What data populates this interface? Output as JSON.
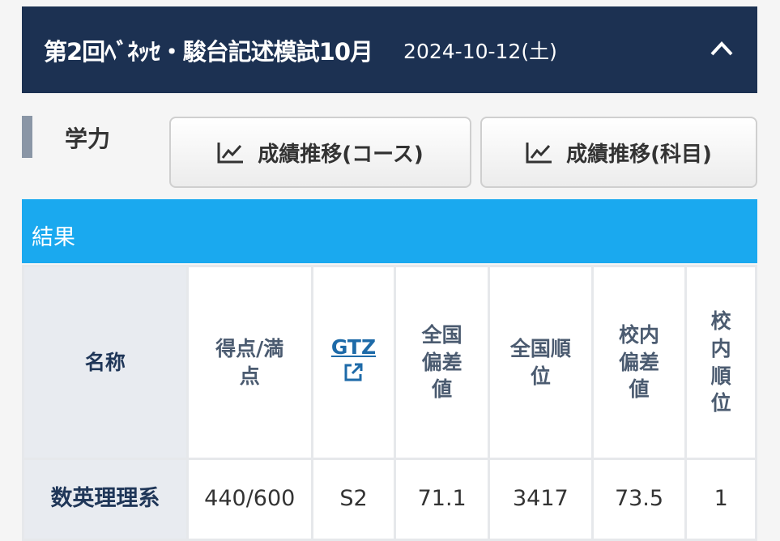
{
  "header": {
    "title": "第2回ﾍﾞﾈｯｾ・駿台記述模試10月",
    "date": "2024-10-12(土)",
    "collapse_icon": "chevron-up-icon"
  },
  "section": {
    "label": "学力"
  },
  "buttons": [
    {
      "label": "成績推移(コース)",
      "icon": "trend-chart-icon"
    },
    {
      "label": "成績推移(科目)",
      "icon": "trend-chart-icon"
    }
  ],
  "results": {
    "title": "結果"
  },
  "colors": {
    "header_bg": "#1c3152",
    "results_bar": "#1aa9ef",
    "link": "#1d6aa8"
  },
  "table": {
    "headers": [
      "名称",
      "得点/満点",
      "GTZ",
      "全国偏差値",
      "全国順位",
      "校内偏差値",
      "校内順位"
    ],
    "rows": [
      [
        "数英理理系",
        "440/600",
        "S2",
        "71.1",
        "3417",
        "73.5",
        "1"
      ]
    ]
  }
}
